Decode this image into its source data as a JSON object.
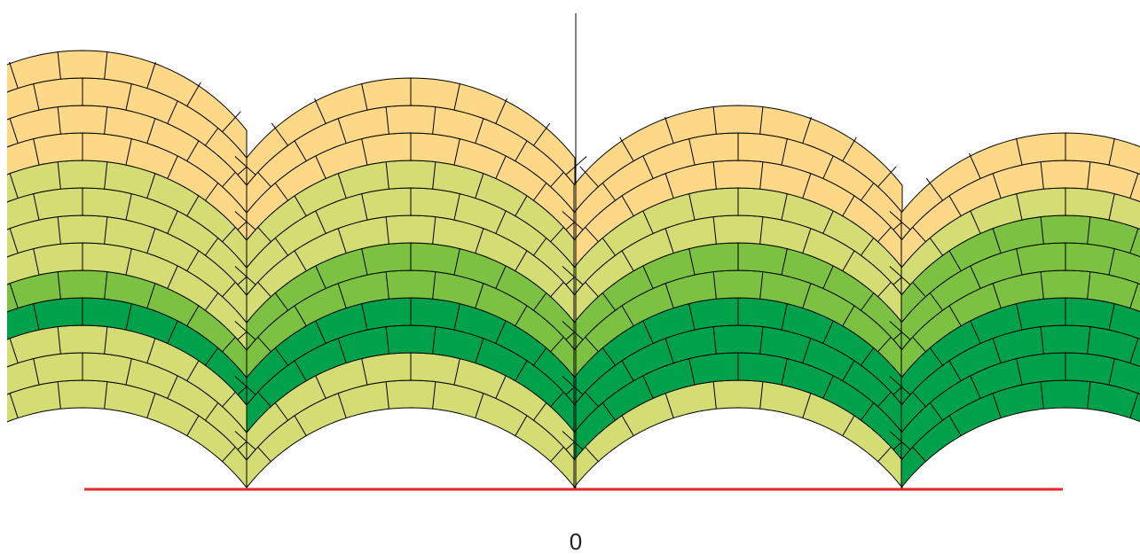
{
  "axis": {
    "label": "0"
  }
}
